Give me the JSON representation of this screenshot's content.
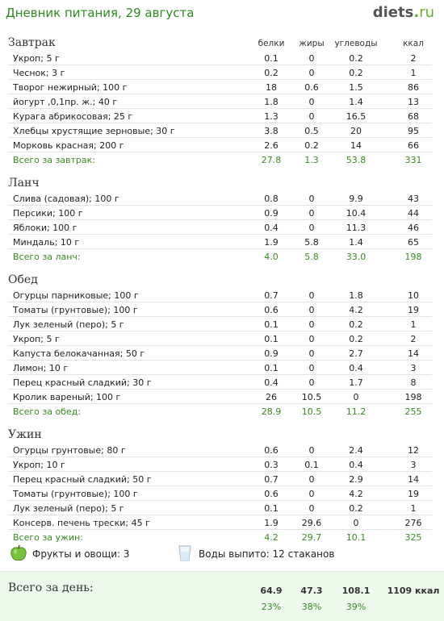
{
  "header": {
    "title": "Дневник питания, 29 августа",
    "logo_main": "diets",
    "logo_dot": ".",
    "logo_tld": "ru"
  },
  "columns": {
    "protein": "белки",
    "fat": "жиры",
    "carbs": "углеводы",
    "kcal": "ккал"
  },
  "sections": [
    {
      "title": "Завтрак",
      "items": [
        {
          "name": "Укроп; 5 г",
          "p": "0.1",
          "f": "0",
          "c": "0.2",
          "k": "2"
        },
        {
          "name": "Чеснок; 3 г",
          "p": "0.2",
          "f": "0",
          "c": "0.2",
          "k": "1"
        },
        {
          "name": "Творог нежирный; 100 г",
          "p": "18",
          "f": "0.6",
          "c": "1.5",
          "k": "86"
        },
        {
          "name": "йогурт ,0,1пр. ж.; 40 г",
          "p": "1.8",
          "f": "0",
          "c": "1.4",
          "k": "13"
        },
        {
          "name": "Курага абрикосовая; 25 г",
          "p": "1.3",
          "f": "0",
          "c": "16.5",
          "k": "68"
        },
        {
          "name": "Хлебцы хрустящие зерновые; 30 г",
          "p": "3.8",
          "f": "0.5",
          "c": "20",
          "k": "95"
        },
        {
          "name": "Морковь красная; 200 г",
          "p": "2.6",
          "f": "0.2",
          "c": "14",
          "k": "66"
        }
      ],
      "total": {
        "name": "Всего за завтрак:",
        "p": "27.8",
        "f": "1.3",
        "c": "53.8",
        "k": "331"
      }
    },
    {
      "title": "Ланч",
      "items": [
        {
          "name": "Слива (садовая); 100 г",
          "p": "0.8",
          "f": "0",
          "c": "9.9",
          "k": "43"
        },
        {
          "name": "Персики; 100 г",
          "p": "0.9",
          "f": "0",
          "c": "10.4",
          "k": "44"
        },
        {
          "name": "Яблоки; 100 г",
          "p": "0.4",
          "f": "0",
          "c": "11.3",
          "k": "46"
        },
        {
          "name": "Миндаль; 10 г",
          "p": "1.9",
          "f": "5.8",
          "c": "1.4",
          "k": "65"
        }
      ],
      "total": {
        "name": "Всего за ланч:",
        "p": "4.0",
        "f": "5.8",
        "c": "33.0",
        "k": "198"
      }
    },
    {
      "title": "Обед",
      "items": [
        {
          "name": "Огурцы парниковые; 100 г",
          "p": "0.7",
          "f": "0",
          "c": "1.8",
          "k": "10"
        },
        {
          "name": "Томаты (грунтовые); 100 г",
          "p": "0.6",
          "f": "0",
          "c": "4.2",
          "k": "19"
        },
        {
          "name": "Лук зеленый (перо); 5 г",
          "p": "0.1",
          "f": "0",
          "c": "0.2",
          "k": "1"
        },
        {
          "name": "Укроп; 5 г",
          "p": "0.1",
          "f": "0",
          "c": "0.2",
          "k": "2"
        },
        {
          "name": "Капуста белокачанная; 50 г",
          "p": "0.9",
          "f": "0",
          "c": "2.7",
          "k": "14"
        },
        {
          "name": "Лимон; 10 г",
          "p": "0.1",
          "f": "0",
          "c": "0.4",
          "k": "3"
        },
        {
          "name": "Перец красный сладкий; 30 г",
          "p": "0.4",
          "f": "0",
          "c": "1.7",
          "k": "8"
        },
        {
          "name": "Кролик вареный; 100 г",
          "p": "26",
          "f": "10.5",
          "c": "0",
          "k": "198"
        }
      ],
      "total": {
        "name": "Всего за обед:",
        "p": "28.9",
        "f": "10.5",
        "c": "11.2",
        "k": "255"
      }
    },
    {
      "title": "Ужин",
      "items": [
        {
          "name": "Огурцы грунтовые; 80 г",
          "p": "0.6",
          "f": "0",
          "c": "2.4",
          "k": "12"
        },
        {
          "name": "Укроп; 10 г",
          "p": "0.3",
          "f": "0.1",
          "c": "0.4",
          "k": "3"
        },
        {
          "name": "Перец красный сладкий; 50 г",
          "p": "0.7",
          "f": "0",
          "c": "2.9",
          "k": "14"
        },
        {
          "name": "Томаты (грунтовые); 100 г",
          "p": "0.6",
          "f": "0",
          "c": "4.2",
          "k": "19"
        },
        {
          "name": "Лук зеленый (перо); 5 г",
          "p": "0.1",
          "f": "0",
          "c": "0.2",
          "k": "1"
        },
        {
          "name": "Консерв. печень трески; 45 г",
          "p": "1.9",
          "f": "29.6",
          "c": "0",
          "k": "276"
        }
      ],
      "total": {
        "name": "Всего за ужин:",
        "p": "4.2",
        "f": "29.7",
        "c": "10.1",
        "k": "325"
      }
    }
  ],
  "extras": {
    "fruits": "Фрукты и овощи: 3",
    "water": "Воды выпито: 12 стаканов"
  },
  "day_total": {
    "label": "Всего за день:",
    "p": "64.9",
    "f": "47.3",
    "c": "108.1",
    "k": "1109 ккал",
    "p_pct": "23%",
    "f_pct": "38%",
    "c_pct": "39%"
  },
  "colors": {
    "accent_green": "#2f8a1e",
    "day_bg": "#eef9ee"
  }
}
